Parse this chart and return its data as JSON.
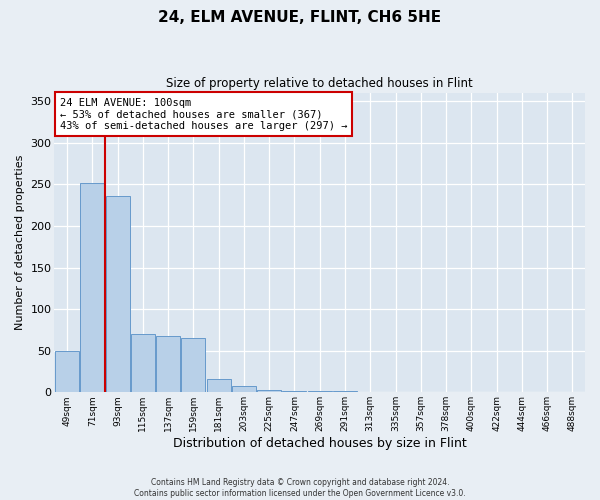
{
  "title": "24, ELM AVENUE, FLINT, CH6 5HE",
  "subtitle": "Size of property relative to detached houses in Flint",
  "xlabel": "Distribution of detached houses by size in Flint",
  "ylabel": "Number of detached properties",
  "bar_values": [
    50,
    252,
    236,
    70,
    68,
    65,
    16,
    7,
    3,
    2,
    1,
    1
  ],
  "all_xlabels": [
    "49sqm",
    "71sqm",
    "93sqm",
    "115sqm",
    "137sqm",
    "159sqm",
    "181sqm",
    "203sqm",
    "225sqm",
    "247sqm",
    "269sqm",
    "291sqm",
    "313sqm",
    "335sqm",
    "357sqm",
    "378sqm",
    "400sqm",
    "422sqm",
    "444sqm",
    "466sqm",
    "488sqm"
  ],
  "bar_color": "#b8d0e8",
  "bar_edge_color": "#6699cc",
  "vline_color": "#cc0000",
  "vline_x": 1.5,
  "ylim": [
    0,
    360
  ],
  "yticks": [
    0,
    50,
    100,
    150,
    200,
    250,
    300,
    350
  ],
  "annotation_title": "24 ELM AVENUE: 100sqm",
  "annotation_line1": "← 53% of detached houses are smaller (367)",
  "annotation_line2": "43% of semi-detached houses are larger (297) →",
  "annotation_box_color": "#cc0000",
  "footer_line1": "Contains HM Land Registry data © Crown copyright and database right 2024.",
  "footer_line2": "Contains public sector information licensed under the Open Government Licence v3.0.",
  "background_color": "#e8eef4",
  "plot_bg_color": "#dce6f0"
}
